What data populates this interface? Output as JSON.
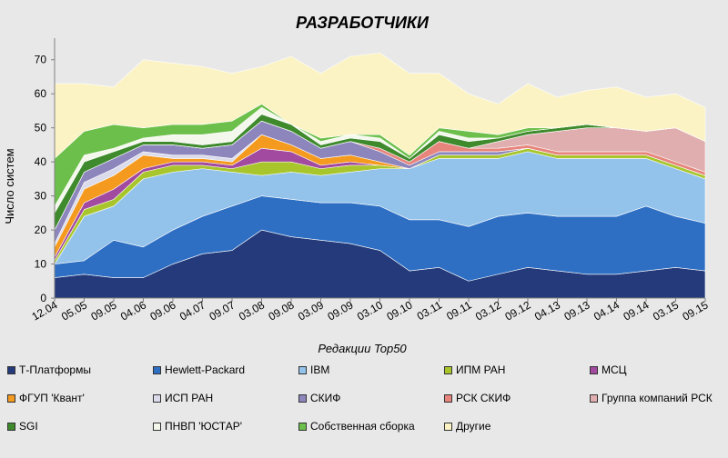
{
  "chart_data": {
    "type": "area",
    "stacked": true,
    "title": "РАЗРАБОТЧИКИ",
    "xlabel": "Редакции Top50",
    "ylabel": "Число систем",
    "ylim": [
      0,
      75
    ],
    "yticks": [
      0,
      10,
      20,
      30,
      40,
      50,
      60,
      70
    ],
    "grid": false,
    "legend_position": "bottom",
    "categories": [
      "12.04",
      "05.05",
      "09.05",
      "04.06",
      "09.06",
      "04.07",
      "09.07",
      "03.08",
      "09.08",
      "03.09",
      "09.09",
      "03.10",
      "09.10",
      "03.11",
      "09.11",
      "03.12",
      "09.12",
      "04.13",
      "09.13",
      "04.14",
      "09.14",
      "03.15",
      "09.15"
    ],
    "series": [
      {
        "name": "Т-Платформы",
        "color": "#243a7a",
        "values": [
          6,
          7,
          6,
          6,
          10,
          13,
          14,
          20,
          18,
          17,
          16,
          14,
          8,
          9,
          5,
          7,
          9,
          8,
          7,
          7,
          8,
          9,
          8
        ]
      },
      {
        "name": "Hewlett-Packard",
        "color": "#2e6fc4",
        "values": [
          4,
          4,
          11,
          9,
          10,
          11,
          13,
          10,
          11,
          11,
          12,
          13,
          15,
          14,
          16,
          17,
          16,
          16,
          17,
          17,
          19,
          15,
          14
        ]
      },
      {
        "name": "IBM",
        "color": "#93c2ea",
        "values": [
          0,
          13,
          10,
          20,
          17,
          14,
          10,
          6,
          8,
          8,
          9,
          11,
          15,
          18,
          20,
          17,
          18,
          17,
          17,
          17,
          14,
          14,
          13
        ]
      },
      {
        "name": "ИПМ РАН",
        "color": "#a8c62c",
        "values": [
          1,
          2,
          2,
          2,
          2,
          1,
          1,
          4,
          3,
          2,
          2,
          1,
          0,
          1,
          1,
          1,
          1,
          1,
          1,
          1,
          1,
          1,
          1
        ]
      },
      {
        "name": "МСЦ",
        "color": "#a24aa0",
        "values": [
          1,
          2,
          3,
          1,
          1,
          1,
          1,
          4,
          3,
          1,
          1,
          0,
          0,
          0,
          0,
          0,
          0,
          0,
          0,
          0,
          0,
          0,
          0
        ]
      },
      {
        "name": "ФГУП 'Квант'",
        "color": "#f49a1e",
        "values": [
          3,
          4,
          4,
          4,
          1,
          1,
          1,
          4,
          2,
          2,
          2,
          1,
          0,
          0,
          0,
          0,
          0,
          0,
          0,
          0,
          0,
          0,
          0
        ]
      },
      {
        "name": "ИСП РАН",
        "color": "#dadcec",
        "values": [
          1,
          2,
          2,
          1,
          1,
          1,
          1,
          0,
          0,
          0,
          0,
          0,
          0,
          0,
          0,
          0,
          0,
          0,
          0,
          0,
          0,
          0,
          0
        ]
      },
      {
        "name": "СКИФ",
        "color": "#8d86bd",
        "values": [
          4,
          3,
          3,
          2,
          3,
          2,
          4,
          4,
          4,
          3,
          4,
          3,
          1,
          1,
          1,
          1,
          0,
          0,
          0,
          0,
          0,
          0,
          0
        ]
      },
      {
        "name": "РСК СКИФ",
        "color": "#e7847c",
        "values": [
          0,
          0,
          0,
          0,
          0,
          0,
          0,
          0,
          0,
          0,
          0,
          1,
          1,
          3,
          1,
          1,
          1,
          1,
          1,
          1,
          1,
          1,
          1
        ]
      },
      {
        "name": "Группа компаний РСК",
        "color": "#e0aeae",
        "values": [
          0,
          0,
          0,
          0,
          0,
          0,
          0,
          0,
          0,
          0,
          0,
          0,
          0,
          0,
          0,
          2,
          3,
          6,
          7,
          7,
          6,
          10,
          9
        ]
      },
      {
        "name": "SGI",
        "color": "#3e8a2c",
        "values": [
          5,
          3,
          2,
          1,
          1,
          1,
          1,
          2,
          2,
          1,
          1,
          2,
          1,
          2,
          2,
          1,
          1,
          1,
          1,
          0,
          0,
          0,
          0
        ]
      },
      {
        "name": "ПНВП 'ЮСТАР'",
        "color": "#f4f8ec",
        "values": [
          2,
          2,
          1,
          1,
          2,
          3,
          3,
          2,
          0,
          1,
          1,
          1,
          0,
          1,
          1,
          0,
          0,
          0,
          0,
          0,
          0,
          0,
          0
        ]
      },
      {
        "name": "Собственная сборка",
        "color": "#6cbf4a",
        "values": [
          14,
          7,
          7,
          3,
          3,
          3,
          3,
          1,
          0,
          1,
          0,
          1,
          1,
          1,
          2,
          1,
          1,
          0,
          0,
          0,
          0,
          0,
          0
        ]
      },
      {
        "name": "Другие",
        "color": "#fbf3c4",
        "values": [
          22,
          14,
          11,
          20,
          18,
          17,
          14,
          11,
          20,
          19,
          23,
          24,
          24,
          16,
          11,
          9,
          13,
          9,
          10,
          12,
          10,
          10,
          10
        ]
      }
    ]
  }
}
